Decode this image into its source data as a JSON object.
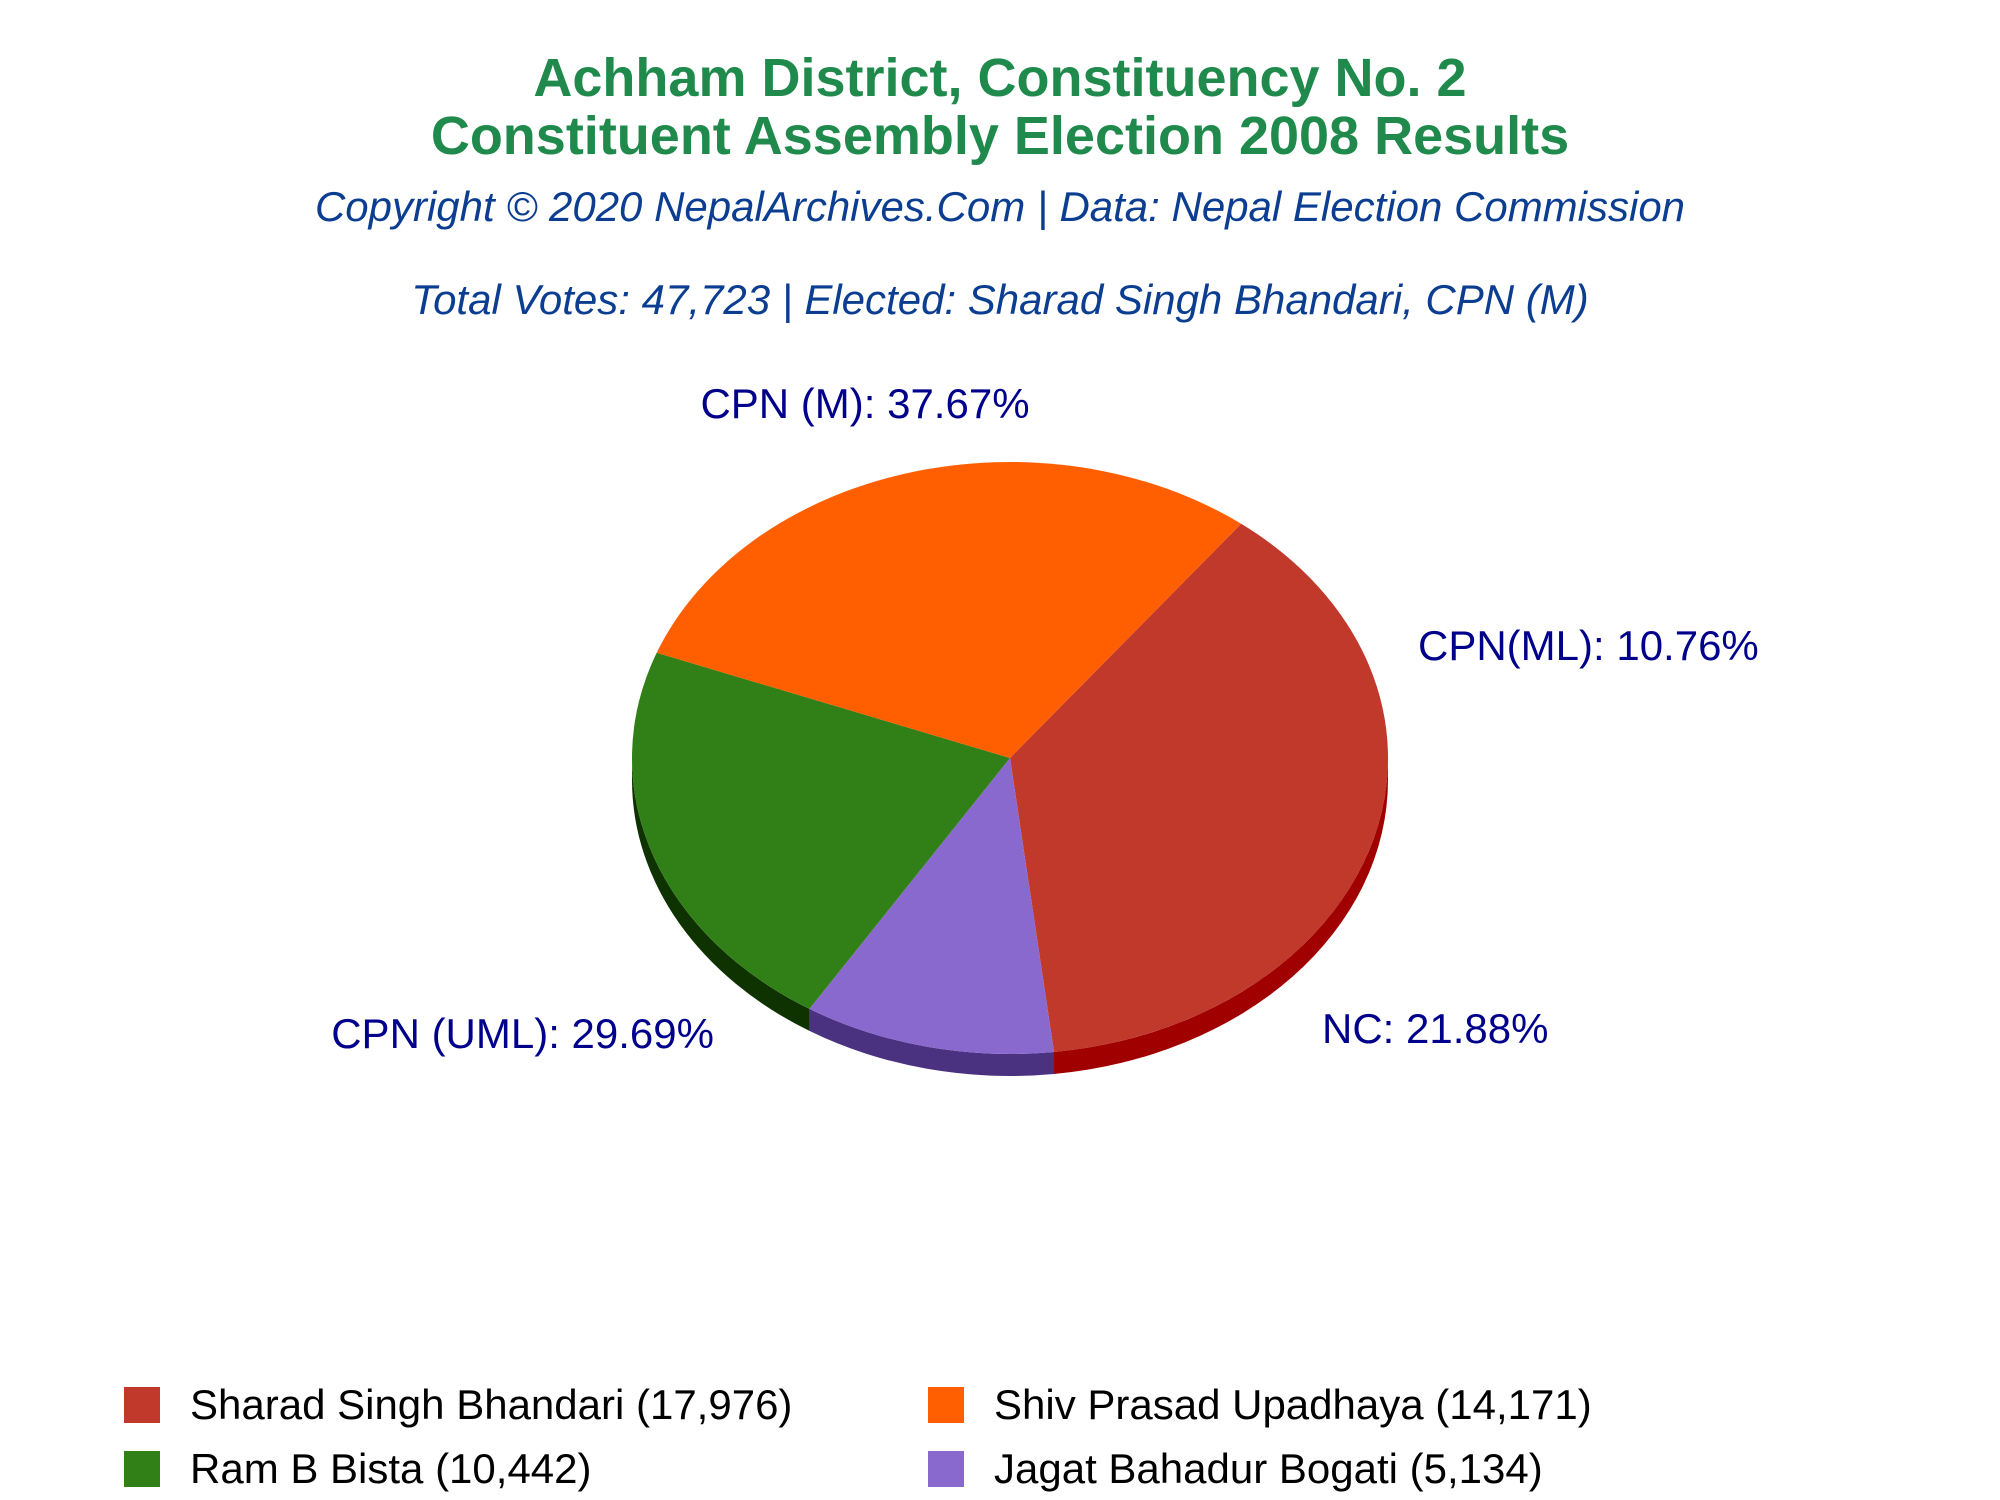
{
  "title_line1": "Achham District, Constituency No. 2",
  "title_line2": "Constituent Assembly Election 2008 Results",
  "copyright": "Copyright © 2020 NepalArchives.Com | Data: Nepal Election Commission",
  "summary": "Total Votes: 47,723 | Elected: Sharad Singh Bhandari, CPN (M)",
  "chart_data": {
    "type": "pie",
    "three_d": true,
    "slices": [
      {
        "label": "CPN (M): 37.67%",
        "party": "CPN (M)",
        "percent": 37.67,
        "candidate": "Sharad Singh Bhandari",
        "votes": 17976,
        "legend": "Sharad Singh Bhandari (17,976)",
        "color": "#c0392b",
        "side_color": "#a10000"
      },
      {
        "label": "CPN(ML): 10.76%",
        "party": "CPN(ML)",
        "percent": 10.76,
        "candidate": "Jagat Bahadur Bogati",
        "votes": 5134,
        "legend": "Jagat Bahadur Bogati (5,134)",
        "color": "#8a69cf",
        "side_color": "#4b3280"
      },
      {
        "label": "NC: 21.88%",
        "party": "NC",
        "percent": 21.88,
        "candidate": "Ram B Bista",
        "votes": 10442,
        "legend": "Ram B Bista (10,442)",
        "color": "#318017",
        "side_color": "#0e3200"
      },
      {
        "label": "CPN (UML): 29.69%",
        "party": "CPN (UML)",
        "percent": 29.69,
        "candidate": "Shiv Prasad Upadhaya",
        "votes": 14171,
        "legend": "Shiv Prasad Upadhaya (14,171)",
        "color": "#ff5f00",
        "side_color": "#a10000"
      }
    ],
    "legend_order": [
      0,
      3,
      2,
      1
    ],
    "label_color": "#00008b",
    "legend_position": "bottom"
  }
}
